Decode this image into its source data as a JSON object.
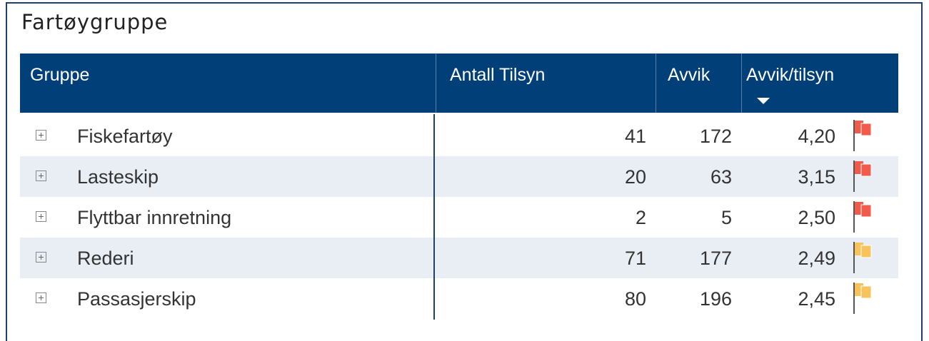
{
  "title": "Fartøygruppe",
  "table": {
    "columns": [
      "Gruppe",
      "Antall Tilsyn",
      "Avvik",
      "Avvik/tilsyn"
    ],
    "rows": [
      [
        "Fiskefartøy",
        "41",
        "172",
        "4,20"
      ],
      [
        "Lasteskip",
        "20",
        "63",
        "3,15"
      ],
      [
        "Flyttbar innretning",
        "2",
        "5",
        "2,50"
      ],
      [
        "Rederi",
        "71",
        "177",
        "2,49"
      ],
      [
        "Passasjerskip",
        "80",
        "196",
        "2,45"
      ]
    ],
    "flag_colors": [
      "#f25a4a",
      "#f25a4a",
      "#f25a4a",
      "#f7c35a",
      "#f7c35a"
    ]
  }
}
